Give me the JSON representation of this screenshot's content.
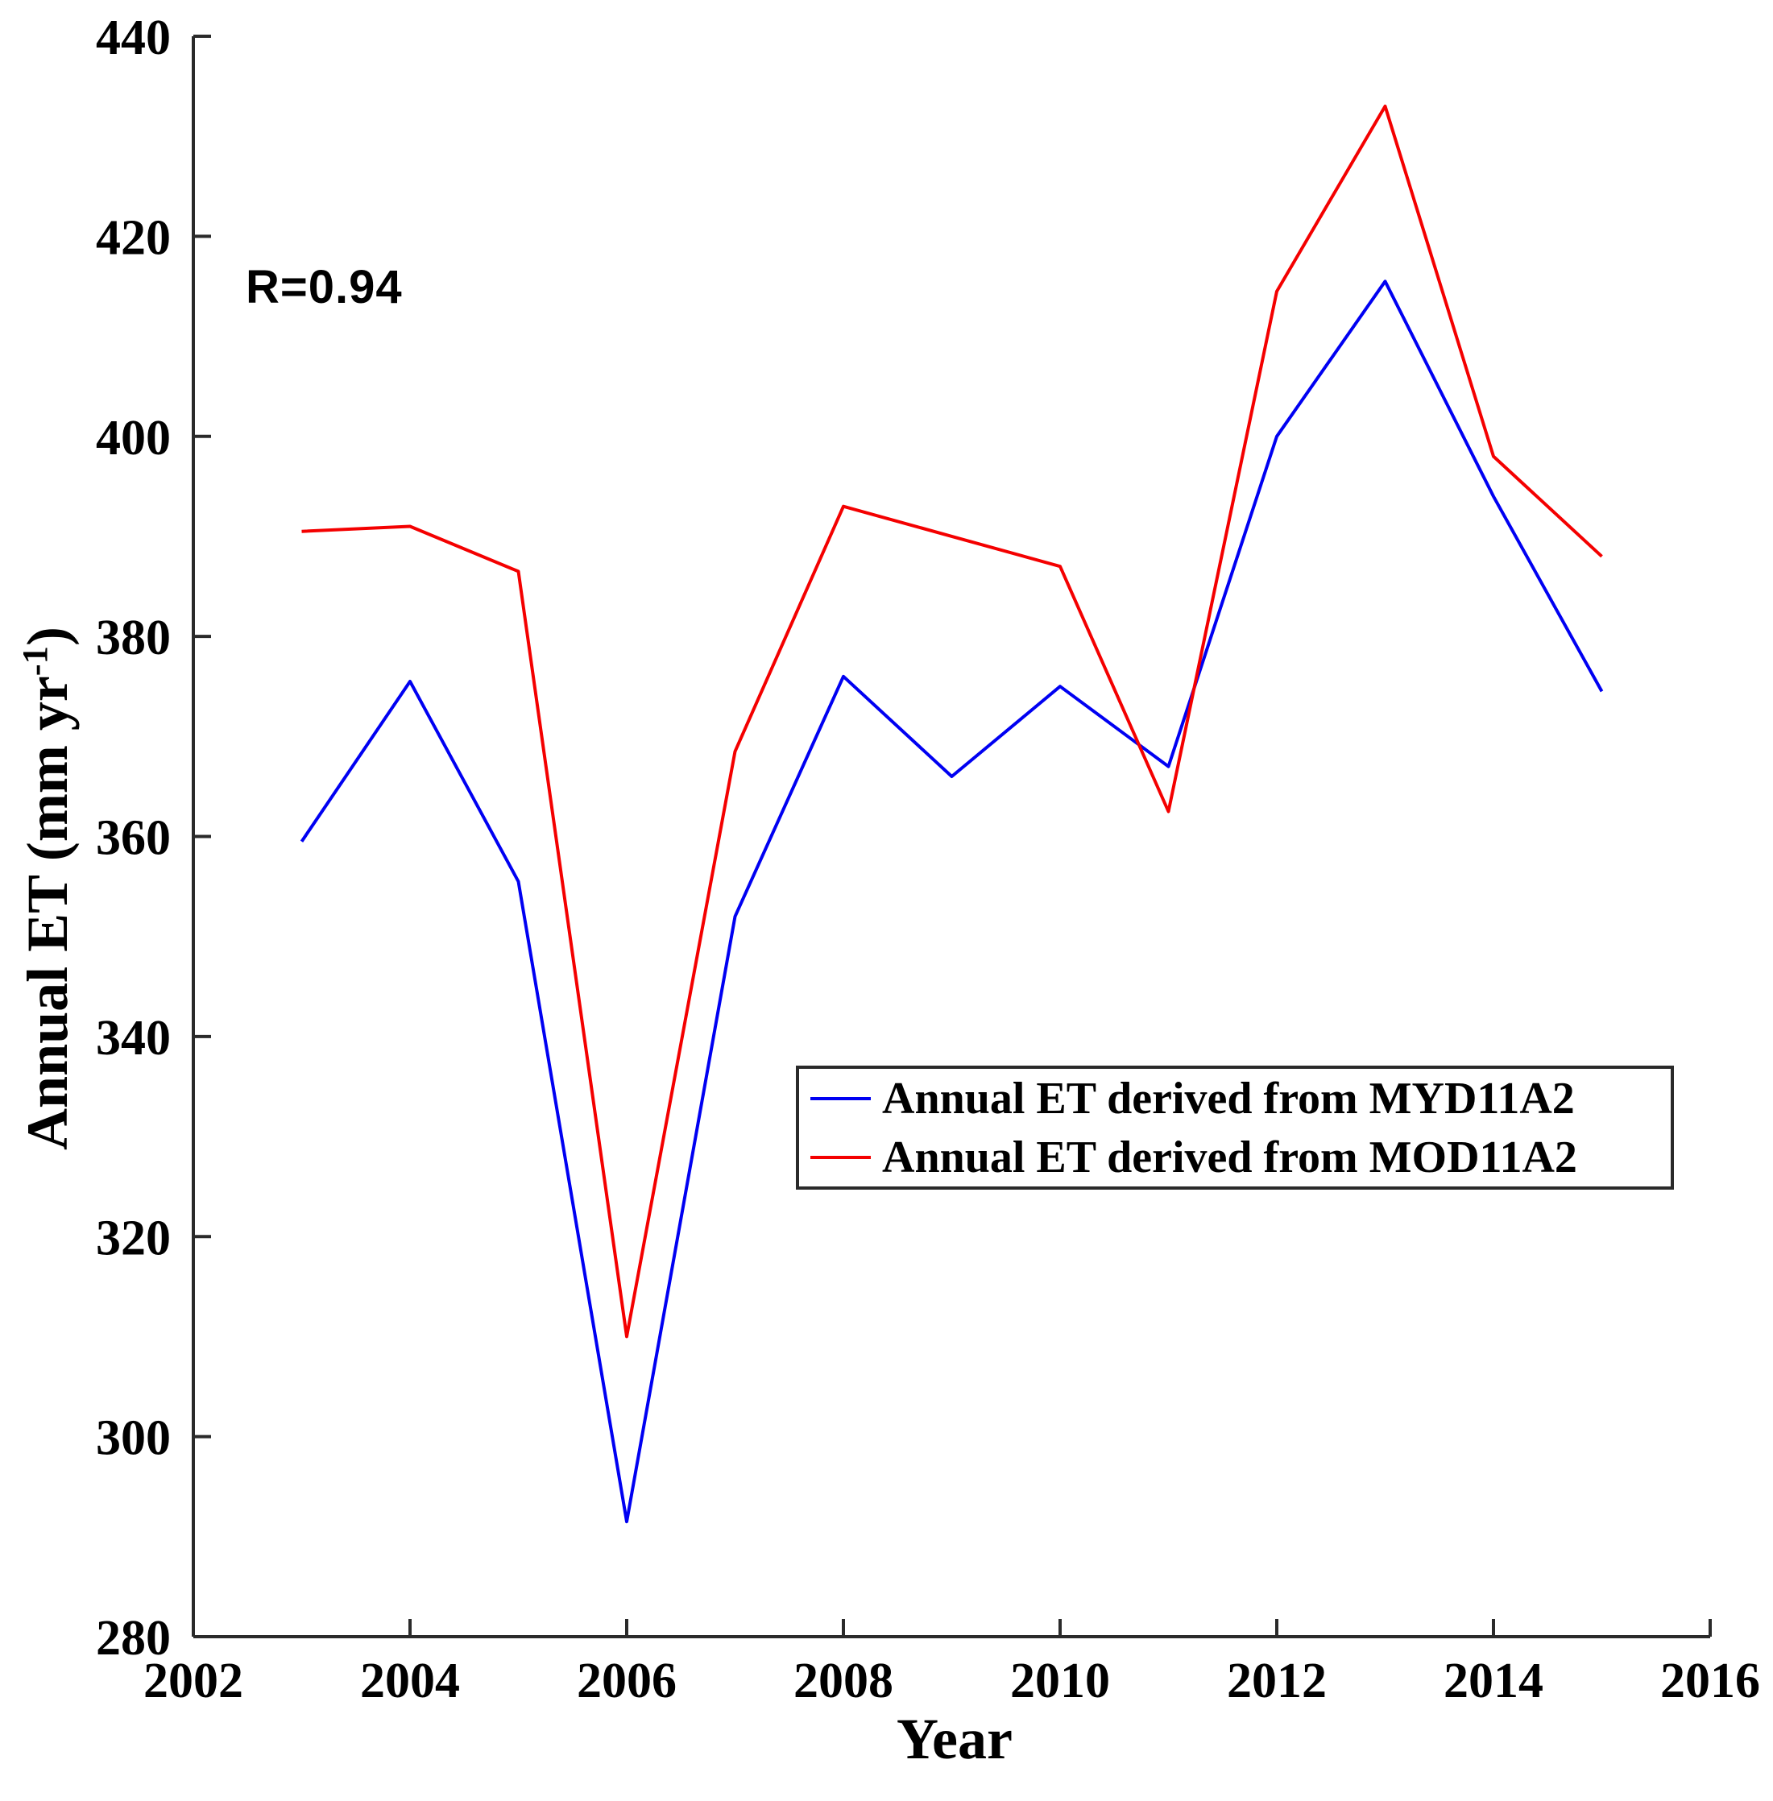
{
  "figure": {
    "background": "#FFFFFF",
    "annotation": "R=0.94"
  },
  "chart_data": {
    "type": "line",
    "title": "",
    "xlabel": "Year",
    "ylabel": "Annual ET (mm yr⁻¹)",
    "ylabel_main": "Annual ET (mm yr",
    "ylabel_sup": "-1",
    "ylabel_close": ")",
    "annotation": "R=0.94",
    "x": [
      2003,
      2004,
      2005,
      2006,
      2007,
      2008,
      2009,
      2010,
      2011,
      2012,
      2013,
      2014,
      2015
    ],
    "series": [
      {
        "name": "Annual ET derived from MYD11A2",
        "short": "MYD11A2",
        "color": "#0000F2",
        "values": [
          359.5,
          375.5,
          355.5,
          291.5,
          352,
          376,
          366,
          375,
          367,
          400,
          415.5,
          394,
          374.5
        ]
      },
      {
        "name": "Annual ET derived from MOD11A2",
        "short": "MOD11A2",
        "color": "#F40000",
        "values": [
          390.5,
          391,
          386.5,
          310,
          368.5,
          393,
          390,
          387,
          362.5,
          414.5,
          433,
          398,
          388
        ]
      }
    ],
    "xlim": [
      2002,
      2016
    ],
    "ylim": [
      280,
      440
    ],
    "x_ticks": [
      2002,
      2004,
      2006,
      2008,
      2010,
      2012,
      2014,
      2016
    ],
    "y_ticks": [
      280,
      300,
      320,
      340,
      360,
      380,
      400,
      420,
      440
    ],
    "grid": false,
    "legend_position": "center-right",
    "axis_color": "#2A2A2A",
    "text_color": "#000000"
  }
}
